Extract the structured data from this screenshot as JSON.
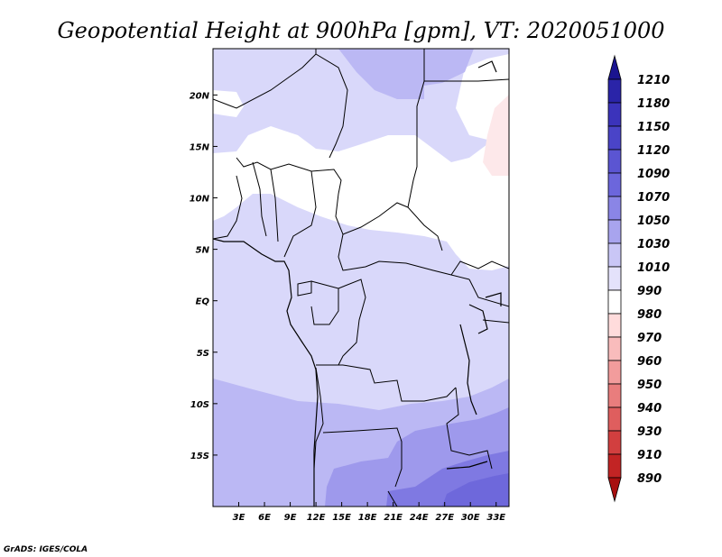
{
  "title": "Geopotential Height at 900hPa [gpm], VT: 2020051000",
  "credit": "GrADS: IGES/COLA",
  "chart_data": {
    "type": "heatmap",
    "variable": "Geopotential Height at 900hPa",
    "units": "gpm",
    "valid_time": "2020051000",
    "lon_range": [
      0,
      34.5
    ],
    "lat_range": [
      -20,
      24.5
    ],
    "x_ticks": [
      "3E",
      "6E",
      "9E",
      "12E",
      "15E",
      "18E",
      "21E",
      "24E",
      "27E",
      "30E",
      "33E"
    ],
    "x_tick_values": [
      3,
      6,
      9,
      12,
      15,
      18,
      21,
      24,
      27,
      30,
      33
    ],
    "y_ticks": [
      "20N",
      "15N",
      "10N",
      "5N",
      "EQ",
      "5S",
      "10S",
      "15S"
    ],
    "y_tick_values": [
      20,
      15,
      10,
      5,
      0,
      -5,
      -10,
      -15
    ],
    "colorbar": {
      "labels": [
        "1210",
        "1180",
        "1150",
        "1120",
        "1090",
        "1070",
        "1050",
        "1030",
        "1010",
        "990",
        "980",
        "970",
        "960",
        "950",
        "940",
        "930",
        "910",
        "890"
      ],
      "colors": [
        "#1a1490",
        "#2a24a8",
        "#3b33bb",
        "#4a44c8",
        "#5b55d2",
        "#6c66dc",
        "#8a85e6",
        "#a8a4ee",
        "#c9c6f6",
        "#e4e2fb",
        "#ffffff",
        "#ffdcdc",
        "#f9bcbc",
        "#f29c9c",
        "#e97d7d",
        "#df5e5e",
        "#d23f3f",
        "#c22424",
        "#a80f0f"
      ],
      "orientation": "vertical",
      "placement": "right"
    }
  }
}
